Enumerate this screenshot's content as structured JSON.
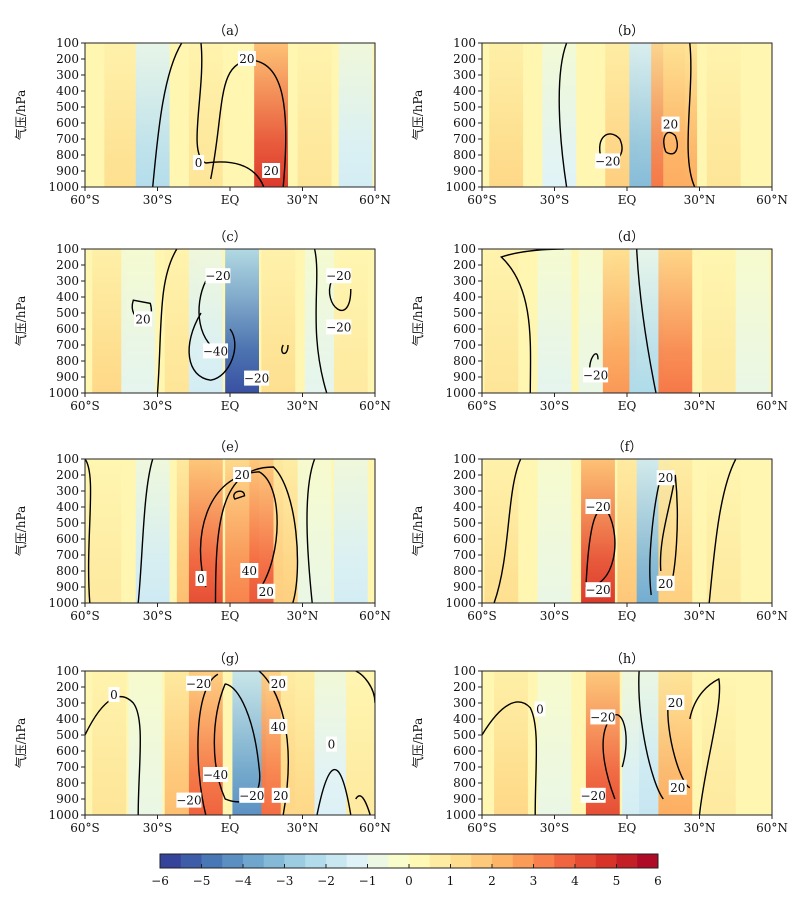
{
  "chart_data": {
    "type": "heatmap",
    "colorbar": {
      "ticks": [
        -6,
        -5,
        -4,
        -3,
        -2,
        -1,
        0,
        1,
        2,
        3,
        4,
        5,
        6
      ],
      "range": [
        -6,
        6
      ],
      "colormap": "RdYlBu_r",
      "colors": [
        "#313695",
        "#4575b4",
        "#74add1",
        "#abd9e9",
        "#e0f3f8",
        "#ffffbf",
        "#fee090",
        "#fdae61",
        "#f46d43",
        "#d73027",
        "#a50026"
      ]
    },
    "x_axis": {
      "ticks": [
        "60°S",
        "30°S",
        "EQ",
        "30°N",
        "60°N"
      ],
      "values": [
        -60,
        -30,
        0,
        30,
        60
      ],
      "range": [
        -60,
        60
      ]
    },
    "y_axis": {
      "label": "气压/hPa",
      "ticks": [
        "100",
        "200",
        "300",
        "400",
        "500",
        "600",
        "700",
        "800",
        "900",
        "1000"
      ],
      "values": [
        100,
        200,
        300,
        400,
        500,
        600,
        700,
        800,
        900,
        1000
      ],
      "range": [
        100,
        1000
      ],
      "inverted": true
    },
    "panels": [
      {
        "title": "（a）",
        "columns": [
          [
            -45,
            1.2
          ],
          [
            -32,
            -2.2
          ],
          [
            -10,
            1.0
          ],
          [
            17,
            4.6
          ],
          [
            35,
            1.0
          ],
          [
            52,
            -1.5
          ]
        ],
        "contour_labels": [
          {
            "text": "20",
            "lon": 7,
            "p": 200
          },
          {
            "text": "0",
            "lon": -13,
            "p": 850
          },
          {
            "text": "20",
            "lon": 17,
            "p": 900
          }
        ]
      },
      {
        "title": "（b）",
        "columns": [
          [
            -50,
            1.4
          ],
          [
            -28,
            -1.2
          ],
          [
            -2,
            1.6
          ],
          [
            8,
            -3.2
          ],
          [
            17,
            3.4
          ],
          [
            22,
            2.4
          ],
          [
            40,
            1.0
          ]
        ],
        "contour_labels": [
          {
            "text": "20",
            "lon": 18,
            "p": 610
          },
          {
            "text": "−20",
            "lon": -8,
            "p": 840
          }
        ]
      },
      {
        "title": "（c）",
        "columns": [
          [
            -50,
            1.4
          ],
          [
            -38,
            -1.0
          ],
          [
            -20,
            1.0
          ],
          [
            -10,
            -1.5
          ],
          [
            5,
            -5.5
          ],
          [
            20,
            1.2
          ],
          [
            38,
            -1.0
          ],
          [
            50,
            0.8
          ]
        ],
        "contour_labels": [
          {
            "text": "−20",
            "lon": -5,
            "p": 270
          },
          {
            "text": "−20",
            "lon": 45,
            "p": 270
          },
          {
            "text": "20",
            "lon": -36,
            "p": 540
          },
          {
            "text": "−20",
            "lon": 45,
            "p": 590
          },
          {
            "text": "−40",
            "lon": -6,
            "p": 740
          },
          {
            "text": "−20",
            "lon": 11,
            "p": 910
          }
        ]
      },
      {
        "title": "（d）",
        "columns": [
          [
            -52,
            1.0
          ],
          [
            -30,
            -1.0
          ],
          [
            -13,
            -0.8
          ],
          [
            -3,
            2.8
          ],
          [
            8,
            -2.3
          ],
          [
            20,
            3.4
          ],
          [
            38,
            0.8
          ],
          [
            52,
            -0.8
          ]
        ],
        "contour_labels": [
          {
            "text": "−20",
            "lon": -13,
            "p": 890
          }
        ]
      },
      {
        "title": "（e）",
        "columns": [
          [
            -52,
            0.8
          ],
          [
            -32,
            -1.6
          ],
          [
            -15,
            2.0
          ],
          [
            -10,
            4.2
          ],
          [
            5,
            3.2
          ],
          [
            15,
            4.0
          ],
          [
            25,
            1.6
          ],
          [
            35,
            -0.8
          ],
          [
            50,
            -1.5
          ]
        ],
        "contour_labels": [
          {
            "text": "20",
            "lon": 5,
            "p": 200
          },
          {
            "text": "40",
            "lon": 8,
            "p": 800
          },
          {
            "text": "0",
            "lon": -12,
            "p": 850
          },
          {
            "text": "20",
            "lon": 15,
            "p": 930
          }
        ]
      },
      {
        "title": "（f）",
        "columns": [
          [
            -52,
            1.2
          ],
          [
            -30,
            -0.8
          ],
          [
            -12,
            4.6
          ],
          [
            3,
            1.8
          ],
          [
            11,
            -3.6
          ],
          [
            20,
            1.6
          ],
          [
            40,
            0.8
          ]
        ],
        "contour_labels": [
          {
            "text": "20",
            "lon": 16,
            "p": 220
          },
          {
            "text": "−20",
            "lon": -12,
            "p": 400
          },
          {
            "text": "20",
            "lon": 16,
            "p": 880
          },
          {
            "text": "−20",
            "lon": -12,
            "p": 920
          }
        ]
      },
      {
        "title": "（g）",
        "columns": [
          [
            -50,
            1.0
          ],
          [
            -35,
            -0.8
          ],
          [
            -20,
            2.0
          ],
          [
            -10,
            3.8
          ],
          [
            8,
            -4.2
          ],
          [
            20,
            3.6
          ],
          [
            28,
            1.4
          ],
          [
            42,
            -1.3
          ],
          [
            55,
            0.8
          ]
        ],
        "contour_labels": [
          {
            "text": "−20",
            "lon": -13,
            "p": 180
          },
          {
            "text": "20",
            "lon": 20,
            "p": 180
          },
          {
            "text": "0",
            "lon": -48,
            "p": 250
          },
          {
            "text": "40",
            "lon": 20,
            "p": 450
          },
          {
            "text": "0",
            "lon": 42,
            "p": 560
          },
          {
            "text": "−40",
            "lon": -6,
            "p": 750
          },
          {
            "text": "−20",
            "lon": -17,
            "p": 910
          },
          {
            "text": "−20",
            "lon": 9,
            "p": 880
          },
          {
            "text": "20",
            "lon": 21,
            "p": 880
          }
        ]
      },
      {
        "title": "（h）",
        "columns": [
          [
            -48,
            1.4
          ],
          [
            -30,
            -0.8
          ],
          [
            -10,
            4.2
          ],
          [
            5,
            -1.5
          ],
          [
            12,
            -1.8
          ],
          [
            20,
            2.4
          ],
          [
            38,
            0.8
          ]
        ],
        "contour_labels": [
          {
            "text": "0",
            "lon": -36,
            "p": 340
          },
          {
            "text": "−20",
            "lon": -10,
            "p": 390
          },
          {
            "text": "20",
            "lon": 20,
            "p": 300
          },
          {
            "text": "20",
            "lon": 21,
            "p": 830
          },
          {
            "text": "−20",
            "lon": -14,
            "p": 880
          }
        ]
      }
    ]
  }
}
